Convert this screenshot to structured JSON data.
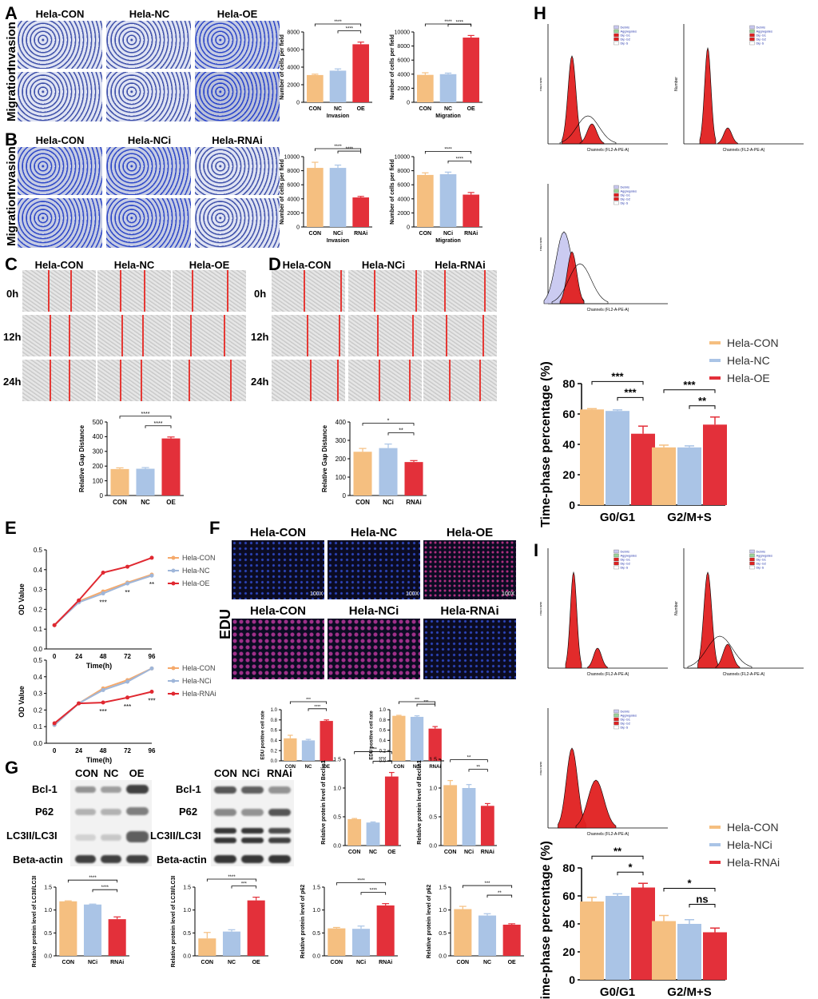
{
  "colors": {
    "con": "#f5bf80",
    "nc": "#aac4e6",
    "oe": "#e3303a",
    "line_con": "#f5a96b",
    "line_nc": "#9fb6d9",
    "line_oe": "#e02830"
  },
  "panels": {
    "A": "A",
    "B": "B",
    "C": "C",
    "D": "D",
    "E": "E",
    "F": "F",
    "G": "G",
    "H": "H",
    "I": "I"
  },
  "A": {
    "cols": [
      "Hela-CON",
      "Hela-NC",
      "Hela-OE"
    ],
    "rows": [
      "Invasion",
      "Migration"
    ]
  },
  "B": {
    "cols": [
      "Hela-CON",
      "Hela-NCi",
      "Hela-RNAi"
    ],
    "rows": [
      "Invasion",
      "Migration"
    ]
  },
  "C": {
    "cols": [
      "Hela-CON",
      "Hela-NC",
      "Hela-OE"
    ],
    "rows": [
      "0h",
      "12h",
      "24h"
    ]
  },
  "D": {
    "cols": [
      "Hela-CON",
      "Hela-NCi",
      "Hela-RNAi"
    ],
    "rows": [
      "0h",
      "12h",
      "24h"
    ]
  },
  "F": {
    "row1": [
      "Hela-CON",
      "Hela-NC",
      "Hela-OE"
    ],
    "row2": [
      "Hela-CON",
      "Hela-NCi",
      "Hela-RNAi"
    ],
    "label": "EDU",
    "mag": "100X"
  },
  "G": {
    "cols1": [
      "CON",
      "NC",
      "OE"
    ],
    "cols2": [
      "CON",
      "NCi",
      "RNAi"
    ],
    "rows": [
      "Bcl-1",
      "P62",
      "LC3II/LC3I",
      "Beta-actin"
    ]
  },
  "flow": {
    "legend": [
      "Debris",
      "Aggregates",
      "Dip G1",
      "Dip G2",
      "Dip S"
    ],
    "xlabel": "Channels (FL2-A-PE-A)",
    "ylabel": "Number"
  },
  "chart_data": [
    {
      "id": "A1",
      "type": "bar",
      "categories": [
        "CON",
        "NC",
        "OE"
      ],
      "values": [
        3100,
        3600,
        6600
      ],
      "errors": [
        100,
        200,
        250
      ],
      "ylabel": "Number of cells per field",
      "xlabel": "Invasion",
      "ylim": [
        0,
        8000
      ],
      "ticks": [
        0,
        2000,
        4000,
        6000,
        8000
      ],
      "sig": [
        {
          "from": 0,
          "to": 2,
          "text": "****"
        },
        {
          "from": 1,
          "to": 2,
          "text": "****"
        }
      ]
    },
    {
      "id": "A2",
      "type": "bar",
      "categories": [
        "CON",
        "NC",
        "OE"
      ],
      "values": [
        3900,
        4000,
        9200
      ],
      "errors": [
        300,
        150,
        300
      ],
      "ylabel": "Number of cells per field",
      "xlabel": "Migration",
      "ylim": [
        0,
        10000
      ],
      "ticks": [
        0,
        2000,
        4000,
        6000,
        8000,
        10000
      ],
      "sig": [
        {
          "from": 0,
          "to": 2,
          "text": "****"
        },
        {
          "from": 1,
          "to": 2,
          "text": "****"
        }
      ]
    },
    {
      "id": "B1",
      "type": "bar",
      "categories": [
        "CON",
        "NCi",
        "RNAi"
      ],
      "values": [
        8400,
        8400,
        4200
      ],
      "errors": [
        800,
        400,
        150
      ],
      "ylabel": "Number of cells per field",
      "xlabel": "Invasion",
      "ylim": [
        0,
        10000
      ],
      "ticks": [
        0,
        2000,
        4000,
        6000,
        8000,
        10000
      ],
      "sig": [
        {
          "from": 0,
          "to": 2,
          "text": "****"
        },
        {
          "from": 1,
          "to": 2,
          "text": "****"
        }
      ]
    },
    {
      "id": "B2",
      "type": "bar",
      "categories": [
        "CON",
        "NCi",
        "RNAi"
      ],
      "values": [
        7400,
        7500,
        4600
      ],
      "errors": [
        300,
        300,
        300
      ],
      "ylabel": "Number of cells per field",
      "xlabel": "Migration",
      "ylim": [
        0,
        10000
      ],
      "ticks": [
        0,
        2000,
        4000,
        6000,
        8000,
        10000
      ],
      "sig": [
        {
          "from": 0,
          "to": 2,
          "text": "****"
        },
        {
          "from": 1,
          "to": 2,
          "text": "****"
        }
      ]
    },
    {
      "id": "C",
      "type": "bar",
      "categories": [
        "CON",
        "NC",
        "OE"
      ],
      "values": [
        180,
        182,
        388
      ],
      "errors": [
        8,
        8,
        10
      ],
      "ylabel": "Relative Gap Distance",
      "xlabel": "",
      "ylim": [
        0,
        500
      ],
      "ticks": [
        0,
        100,
        200,
        300,
        400,
        500
      ],
      "sig": [
        {
          "from": 0,
          "to": 2,
          "text": "****"
        },
        {
          "from": 1,
          "to": 2,
          "text": "****"
        }
      ]
    },
    {
      "id": "D",
      "type": "bar",
      "categories": [
        "CON",
        "NCi",
        "RNAi"
      ],
      "values": [
        238,
        258,
        182
      ],
      "errors": [
        18,
        22,
        8
      ],
      "ylabel": "Relative Gap Distance",
      "xlabel": "",
      "ylim": [
        0,
        400
      ],
      "ticks": [
        0,
        100,
        200,
        300,
        400
      ],
      "sig": [
        {
          "from": 0,
          "to": 2,
          "text": "*"
        },
        {
          "from": 1,
          "to": 2,
          "text": "**"
        }
      ]
    },
    {
      "id": "E1",
      "type": "line",
      "x": [
        0,
        24,
        48,
        72,
        96
      ],
      "series": [
        {
          "name": "Hela-CON",
          "values": [
            0.12,
            0.24,
            0.29,
            0.335,
            0.375
          ]
        },
        {
          "name": "Hela-NC",
          "values": [
            0.12,
            0.235,
            0.28,
            0.33,
            0.37
          ]
        },
        {
          "name": "Hela-OE",
          "values": [
            0.12,
            0.245,
            0.385,
            0.415,
            0.46
          ]
        }
      ],
      "ylabel": "OD Value",
      "xlabel": "Time(h)",
      "ylim": [
        0,
        0.5
      ],
      "ticks": [
        0.0,
        0.1,
        0.2,
        0.3,
        0.4,
        0.5
      ],
      "stars": [
        {
          "x": 48,
          "text": "***"
        },
        {
          "x": 72,
          "text": "**"
        },
        {
          "x": 96,
          "text": "**"
        }
      ]
    },
    {
      "id": "E2",
      "type": "line",
      "x": [
        0,
        24,
        48,
        72,
        96
      ],
      "series": [
        {
          "name": "Hela-CON",
          "values": [
            0.11,
            0.24,
            0.33,
            0.38,
            0.45
          ]
        },
        {
          "name": "Hela-NCi",
          "values": [
            0.11,
            0.24,
            0.32,
            0.37,
            0.45
          ]
        },
        {
          "name": "Hela-RNAi",
          "values": [
            0.12,
            0.24,
            0.245,
            0.275,
            0.31
          ]
        }
      ],
      "ylabel": "OD Value",
      "xlabel": "Time(h)",
      "ylim": [
        0,
        0.5
      ],
      "ticks": [
        0.0,
        0.1,
        0.2,
        0.3,
        0.4,
        0.5
      ],
      "stars": [
        {
          "x": 48,
          "text": "***"
        },
        {
          "x": 72,
          "text": "***"
        },
        {
          "x": 96,
          "text": "***"
        }
      ]
    },
    {
      "id": "F1",
      "type": "bar",
      "categories": [
        "CON",
        "NC",
        "OE"
      ],
      "values": [
        0.44,
        0.4,
        0.78
      ],
      "errors": [
        0.06,
        0.02,
        0.02
      ],
      "ylabel": "EDU positive cell rate",
      "xlabel": "",
      "ylim": [
        0,
        1.0
      ],
      "ticks": [
        0.0,
        0.2,
        0.4,
        0.6,
        0.8,
        1.0
      ],
      "sig": [
        {
          "from": 0,
          "to": 2,
          "text": "***"
        },
        {
          "from": 1,
          "to": 2,
          "text": "****"
        }
      ]
    },
    {
      "id": "F2",
      "type": "bar",
      "categories": [
        "CON",
        "NCi",
        "RNAi"
      ],
      "values": [
        0.88,
        0.86,
        0.63
      ],
      "errors": [
        0.01,
        0.02,
        0.04
      ],
      "ylabel": "EDU positive cell rate",
      "xlabel": "",
      "ylim": [
        0,
        1.0
      ],
      "ticks": [
        0.0,
        0.2,
        0.4,
        0.6,
        0.8,
        1.0
      ],
      "sig": [
        {
          "from": 0,
          "to": 2,
          "text": "***"
        },
        {
          "from": 1,
          "to": 2,
          "text": "***"
        }
      ]
    },
    {
      "id": "G1",
      "type": "bar",
      "categories": [
        "CON",
        "NC",
        "OE"
      ],
      "values": [
        0.46,
        0.4,
        1.2
      ],
      "errors": [
        0.01,
        0.01,
        0.07
      ],
      "ylabel": "Relative protein level of Beclin1",
      "xlabel": "",
      "ylim": [
        0,
        1.5
      ],
      "ticks": [
        0.0,
        0.5,
        1.0,
        1.5
      ],
      "sig": [
        {
          "from": 0,
          "to": 2,
          "text": "****"
        },
        {
          "from": 1,
          "to": 2,
          "text": "****"
        }
      ]
    },
    {
      "id": "G2",
      "type": "bar",
      "categories": [
        "CON",
        "NCi",
        "RNAi"
      ],
      "values": [
        1.05,
        1.0,
        0.69
      ],
      "errors": [
        0.08,
        0.06,
        0.04
      ],
      "ylabel": "Relative protein level of Beclin1",
      "xlabel": "",
      "ylim": [
        0,
        1.5
      ],
      "ticks": [
        0.0,
        0.5,
        1.0,
        1.5
      ],
      "sig": [
        {
          "from": 0,
          "to": 2,
          "text": "**"
        },
        {
          "from": 1,
          "to": 2,
          "text": "**"
        }
      ]
    },
    {
      "id": "G3",
      "type": "bar",
      "categories": [
        "CON",
        "NCi",
        "RNAi"
      ],
      "values": [
        1.19,
        1.12,
        0.8
      ],
      "errors": [
        0.01,
        0.01,
        0.05
      ],
      "ylabel": "Relative protein level of LC3II/LC3I",
      "xlabel": "",
      "ylim": [
        0,
        1.5
      ],
      "ticks": [
        0.0,
        0.5,
        1.0,
        1.5
      ],
      "sig": [
        {
          "from": 0,
          "to": 2,
          "text": "****"
        },
        {
          "from": 1,
          "to": 2,
          "text": "****"
        }
      ]
    },
    {
      "id": "G4",
      "type": "bar",
      "categories": [
        "CON",
        "NC",
        "OE"
      ],
      "values": [
        0.38,
        0.53,
        1.21
      ],
      "errors": [
        0.13,
        0.04,
        0.07
      ],
      "ylabel": "Relative protein level of LC3II/LC3I",
      "xlabel": "",
      "ylim": [
        0,
        1.5
      ],
      "ticks": [
        0.0,
        0.5,
        1.0,
        1.5
      ],
      "sig": [
        {
          "from": 0,
          "to": 2,
          "text": "****"
        },
        {
          "from": 1,
          "to": 2,
          "text": "***"
        }
      ]
    },
    {
      "id": "G5",
      "type": "bar",
      "categories": [
        "CON",
        "NCi",
        "RNAi"
      ],
      "values": [
        0.6,
        0.59,
        1.1
      ],
      "errors": [
        0.02,
        0.06,
        0.04
      ],
      "ylabel": "Relative protein level of p62",
      "xlabel": "",
      "ylim": [
        0,
        1.5
      ],
      "ticks": [
        0.0,
        0.5,
        1.0,
        1.5
      ],
      "sig": [
        {
          "from": 0,
          "to": 2,
          "text": "****"
        },
        {
          "from": 1,
          "to": 2,
          "text": "****"
        }
      ]
    },
    {
      "id": "G6",
      "type": "bar",
      "categories": [
        "CON",
        "NC",
        "OE"
      ],
      "values": [
        1.02,
        0.88,
        0.68
      ],
      "errors": [
        0.06,
        0.04,
        0.02
      ],
      "ylabel": "Relative protein level of p62",
      "xlabel": "",
      "ylim": [
        0,
        1.5
      ],
      "ticks": [
        0.0,
        0.5,
        1.0,
        1.5
      ],
      "sig": [
        {
          "from": 0,
          "to": 2,
          "text": "***"
        },
        {
          "from": 1,
          "to": 2,
          "text": "**"
        }
      ]
    },
    {
      "id": "H",
      "type": "bar",
      "categories": [
        "G0/G1",
        "G2/M+S"
      ],
      "series": [
        {
          "name": "Hela-CON",
          "values": [
            63,
            38
          ],
          "errors": [
            0.5,
            1.5
          ]
        },
        {
          "name": "Hela-NC",
          "values": [
            62,
            38
          ],
          "errors": [
            0.7,
            1
          ]
        },
        {
          "name": "Hela-OE",
          "values": [
            47,
            53
          ],
          "errors": [
            5,
            5
          ]
        }
      ],
      "ylabel": "Time-phase percentage  (%)",
      "ylim": [
        0,
        80
      ],
      "ticks": [
        0,
        20,
        40,
        60,
        80
      ],
      "sig": [
        {
          "group": 0,
          "from": 0,
          "to": 2,
          "text": "***"
        },
        {
          "group": 0,
          "from": 1,
          "to": 2,
          "text": "***"
        },
        {
          "group": 1,
          "from": 0,
          "to": 2,
          "text": "***"
        },
        {
          "group": 1,
          "from": 1,
          "to": 2,
          "text": "**"
        }
      ]
    },
    {
      "id": "I",
      "type": "bar",
      "categories": [
        "G0/G1",
        "G2/M+S"
      ],
      "series": [
        {
          "name": "Hela-CON",
          "values": [
            56,
            42
          ],
          "errors": [
            3,
            4
          ]
        },
        {
          "name": "Hela-NCi",
          "values": [
            60,
            40
          ],
          "errors": [
            1.5,
            3
          ]
        },
        {
          "name": "Hela-RNAi",
          "values": [
            66,
            34
          ],
          "errors": [
            3,
            3
          ]
        }
      ],
      "ylabel": "Time-phase percentage  (%)",
      "ylim": [
        0,
        80
      ],
      "ticks": [
        0,
        20,
        40,
        60,
        80
      ],
      "sig": [
        {
          "group": 0,
          "from": 0,
          "to": 2,
          "text": "**"
        },
        {
          "group": 0,
          "from": 1,
          "to": 2,
          "text": "*"
        },
        {
          "group": 1,
          "from": 0,
          "to": 2,
          "text": "*"
        },
        {
          "group": 1,
          "from": 1,
          "to": 2,
          "text": "ns"
        }
      ]
    }
  ]
}
